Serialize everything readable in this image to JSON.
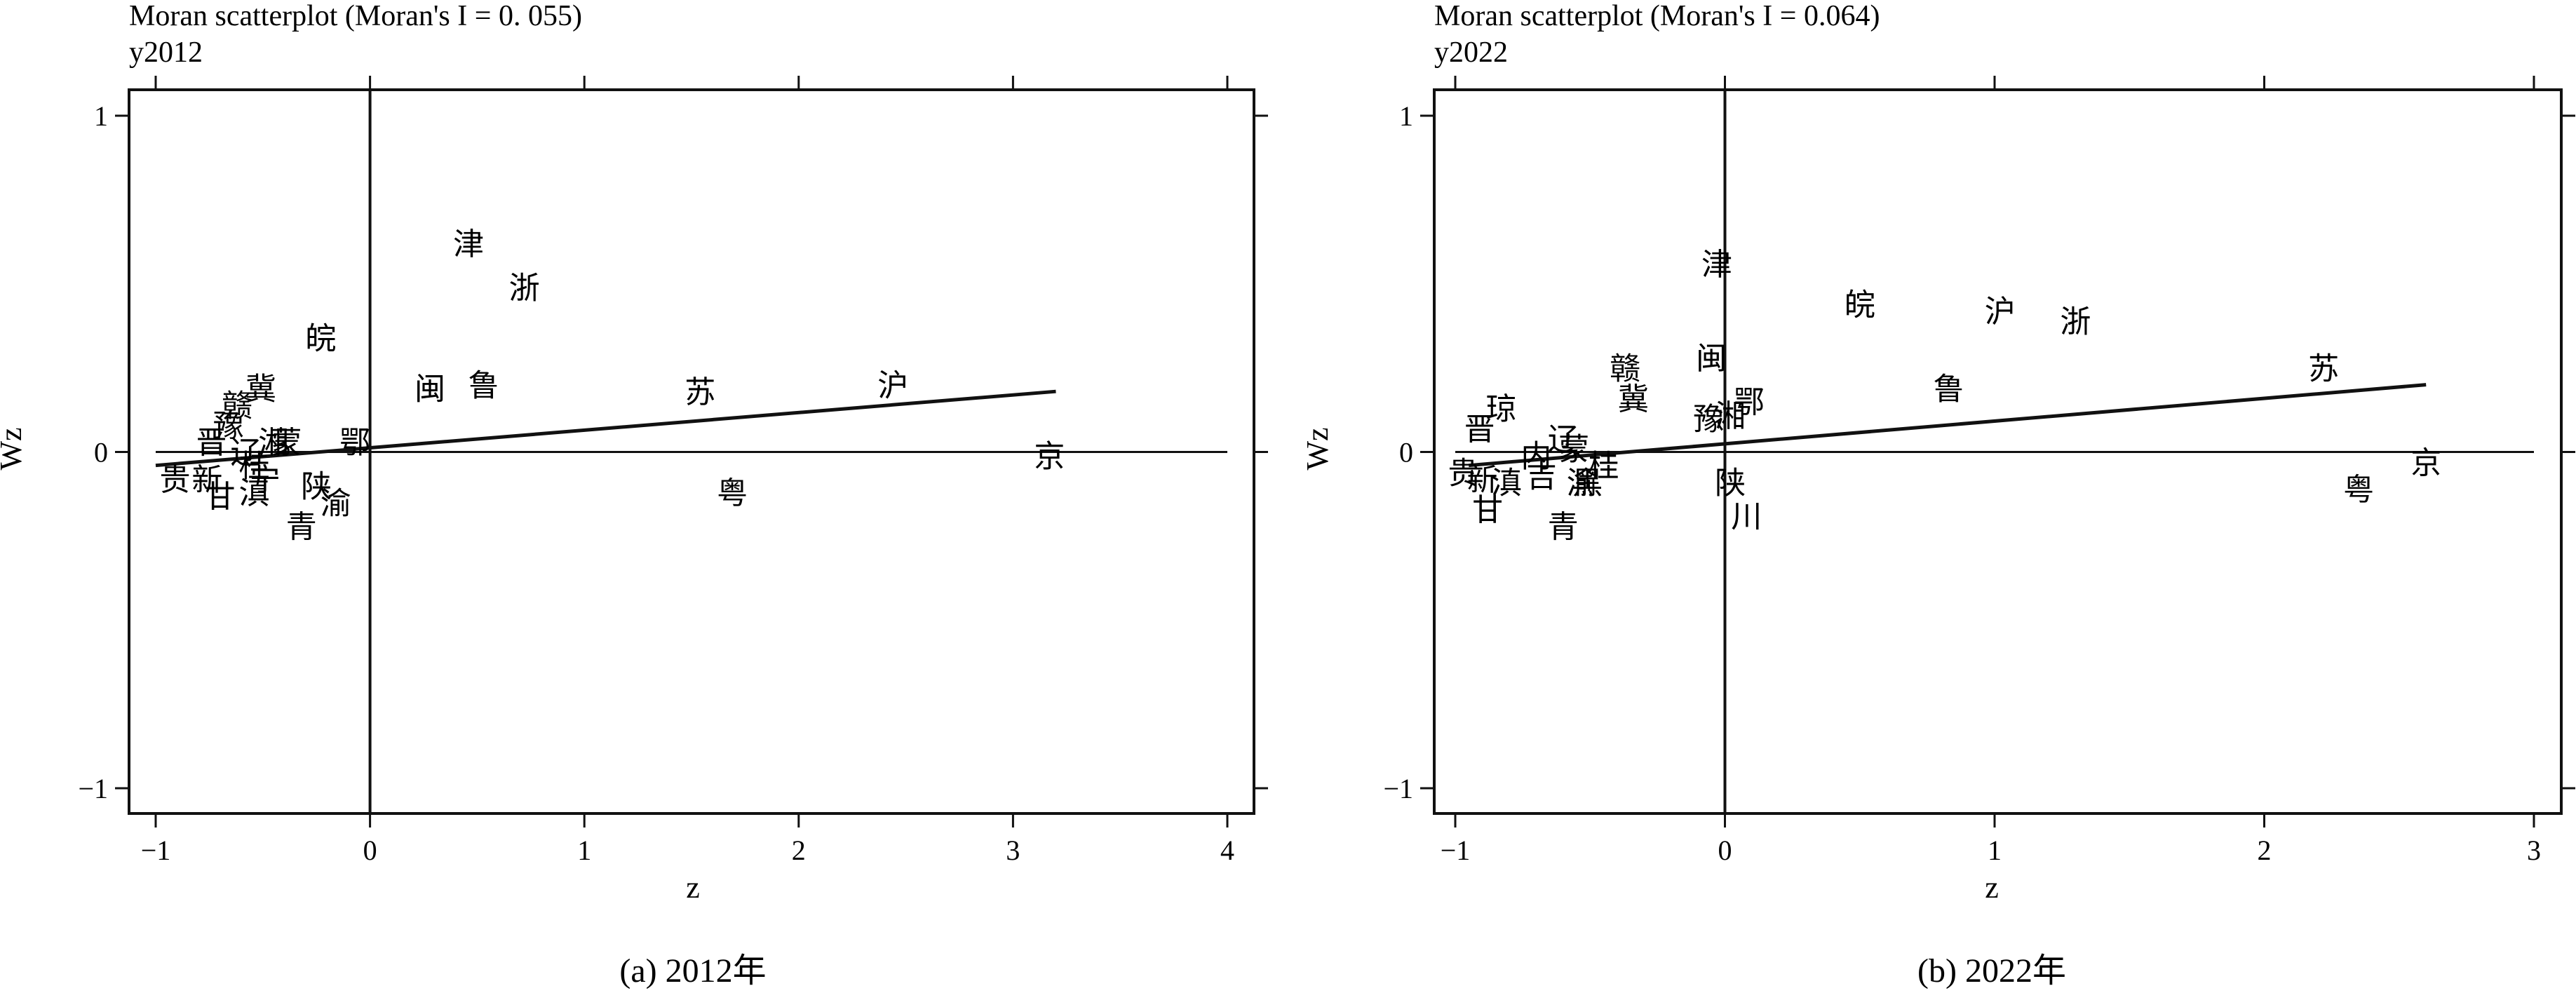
{
  "chart_data": [
    {
      "type": "scatter",
      "title": "Moran scatterplot (Moran's I = 0. 055)",
      "subtitle": "y2012",
      "xlabel": "z",
      "ylabel": "Wz",
      "caption": "(a) 2012年",
      "xlim": [
        -1,
        4
      ],
      "ylim": [
        -1,
        1
      ],
      "xticks": [
        "-1",
        "0",
        "1",
        "2",
        "3",
        "4"
      ],
      "yticks": [
        "-1",
        "0",
        "1"
      ],
      "grid": false,
      "fit_line": {
        "x": [
          -1,
          3.2
        ],
        "y": [
          -0.04,
          0.18
        ]
      },
      "points": [
        {
          "label": "津",
          "x": 0.46,
          "y": 0.62
        },
        {
          "label": "浙",
          "x": 0.72,
          "y": 0.49
        },
        {
          "label": "皖",
          "x": -0.23,
          "y": 0.34
        },
        {
          "label": "闽",
          "x": 0.28,
          "y": 0.19
        },
        {
          "label": "鲁",
          "x": 0.53,
          "y": 0.2
        },
        {
          "label": "苏",
          "x": 1.54,
          "y": 0.18
        },
        {
          "label": "沪",
          "x": 2.44,
          "y": 0.2
        },
        {
          "label": "京",
          "x": 3.17,
          "y": -0.01
        },
        {
          "label": "粤",
          "x": 1.69,
          "y": -0.12
        },
        {
          "label": "鄂",
          "x": -0.07,
          "y": 0.03
        },
        {
          "label": "冀",
          "x": -0.51,
          "y": 0.19
        },
        {
          "label": "赣",
          "x": -0.62,
          "y": 0.14
        },
        {
          "label": "豫",
          "x": -0.66,
          "y": 0.08
        },
        {
          "label": "湘",
          "x": -0.45,
          "y": 0.03
        },
        {
          "label": "蒙",
          "x": -0.39,
          "y": 0.03
        },
        {
          "label": "晋",
          "x": -0.74,
          "y": 0.03
        },
        {
          "label": "辽",
          "x": -0.58,
          "y": 0.0
        },
        {
          "label": "桂",
          "x": -0.54,
          "y": -0.04
        },
        {
          "label": "贵",
          "x": -0.91,
          "y": -0.08
        },
        {
          "label": "新",
          "x": -0.76,
          "y": -0.08
        },
        {
          "label": "宁",
          "x": -0.49,
          "y": -0.08
        },
        {
          "label": "甘",
          "x": -0.7,
          "y": -0.13
        },
        {
          "label": "滇",
          "x": -0.54,
          "y": -0.12
        },
        {
          "label": "陕",
          "x": -0.25,
          "y": -0.1
        },
        {
          "label": "渝",
          "x": -0.16,
          "y": -0.15
        },
        {
          "label": "青",
          "x": -0.32,
          "y": -0.22
        }
      ]
    },
    {
      "type": "scatter",
      "title": "Moran scatterplot (Moran's I = 0.064)",
      "subtitle": "y2022",
      "xlabel": "z",
      "ylabel": "Wz",
      "caption": "(b) 2022年",
      "xlim": [
        -1,
        3
      ],
      "ylim": [
        -1,
        1
      ],
      "xticks": [
        "-1",
        "0",
        "1",
        "2",
        "3"
      ],
      "yticks": [
        "-1",
        "0",
        "1"
      ],
      "grid": false,
      "fit_line": {
        "x": [
          -0.95,
          2.6
        ],
        "y": [
          -0.04,
          0.2
        ]
      },
      "points": [
        {
          "label": "津",
          "x": -0.03,
          "y": 0.56
        },
        {
          "label": "皖",
          "x": 0.5,
          "y": 0.44
        },
        {
          "label": "沪",
          "x": 1.02,
          "y": 0.42
        },
        {
          "label": "浙",
          "x": 1.3,
          "y": 0.39
        },
        {
          "label": "闽",
          "x": -0.05,
          "y": 0.28
        },
        {
          "label": "赣",
          "x": -0.37,
          "y": 0.25
        },
        {
          "label": "冀",
          "x": -0.34,
          "y": 0.16
        },
        {
          "label": "鄂",
          "x": 0.09,
          "y": 0.15
        },
        {
          "label": "湘",
          "x": 0.02,
          "y": 0.11
        },
        {
          "label": "豫",
          "x": -0.06,
          "y": 0.1
        },
        {
          "label": "鲁",
          "x": 0.83,
          "y": 0.19
        },
        {
          "label": "苏",
          "x": 2.22,
          "y": 0.25
        },
        {
          "label": "琼",
          "x": -0.83,
          "y": 0.13
        },
        {
          "label": "晋",
          "x": -0.91,
          "y": 0.07
        },
        {
          "label": "辽",
          "x": -0.6,
          "y": 0.04
        },
        {
          "label": "内",
          "x": -0.7,
          "y": -0.01
        },
        {
          "label": "蒙",
          "x": -0.56,
          "y": 0.01
        },
        {
          "label": "桂",
          "x": -0.45,
          "y": -0.04
        },
        {
          "label": "吉",
          "x": -0.68,
          "y": -0.07
        },
        {
          "label": "贵",
          "x": -0.97,
          "y": -0.06
        },
        {
          "label": "新",
          "x": -0.9,
          "y": -0.08
        },
        {
          "label": "滇",
          "x": -0.81,
          "y": -0.09
        },
        {
          "label": "渝",
          "x": -0.53,
          "y": -0.09
        },
        {
          "label": "黑",
          "x": -0.51,
          "y": -0.09
        },
        {
          "label": "甘",
          "x": -0.88,
          "y": -0.17
        },
        {
          "label": "青",
          "x": -0.6,
          "y": -0.22
        },
        {
          "label": "陕",
          "x": 0.02,
          "y": -0.09
        },
        {
          "label": "川",
          "x": 0.08,
          "y": -0.19
        },
        {
          "label": "粤",
          "x": 2.35,
          "y": -0.11
        },
        {
          "label": "京",
          "x": 2.6,
          "y": -0.03
        }
      ]
    }
  ]
}
